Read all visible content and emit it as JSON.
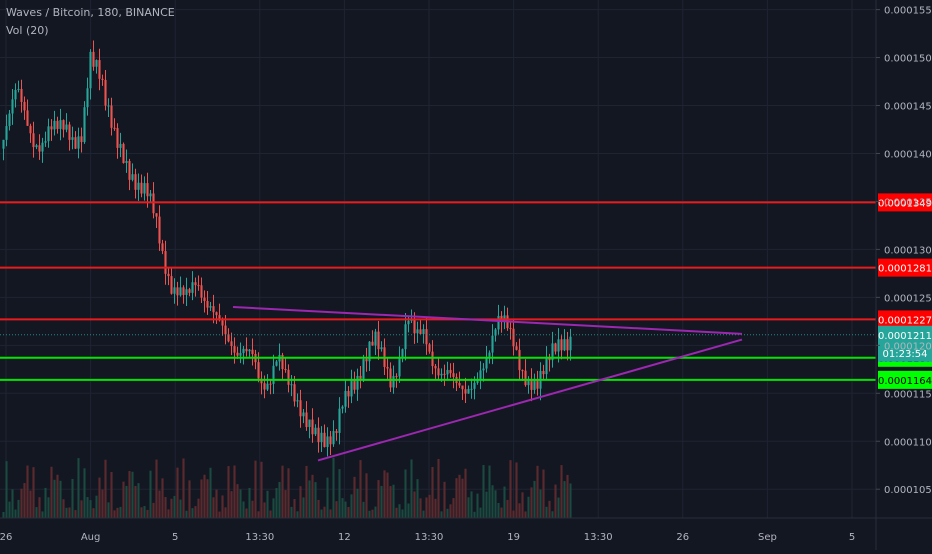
{
  "header": {
    "symbol_line": "Waves / Bitcoin, 180, BINANCE",
    "volume_line": "Vol (20)"
  },
  "chart_data": {
    "type": "candlestick",
    "ylim": [
      0.000102,
      0.000156
    ],
    "y_ticks": [
      "0.0001050",
      "0.0001100",
      "0.0001150",
      "0.0001200",
      "0.0001250",
      "0.0001300",
      "0.0001350",
      "0.0001400",
      "0.0001450",
      "0.0001500",
      "0.0001550"
    ],
    "x_ticks": [
      "26",
      "Aug",
      "5",
      "13:30",
      "12",
      "13:30",
      "19",
      "13:30",
      "26",
      "Sep",
      "5"
    ],
    "levels": [
      {
        "value": 0.0001349,
        "label": "0.0001349",
        "color": "#e81c1c",
        "badge_bg": "#ff0000",
        "badge_fg": "#ffffff"
      },
      {
        "value": 0.0001281,
        "label": "0.0001281",
        "color": "#e81c1c",
        "badge_bg": "#ff0000",
        "badge_fg": "#ffffff"
      },
      {
        "value": 0.0001227,
        "label": "0.0001227",
        "color": "#e81c1c",
        "badge_bg": "#ff0000",
        "badge_fg": "#ffffff"
      },
      {
        "value": 0.0001187,
        "label": "0.0001187",
        "color": "#00e600",
        "badge_bg": "#00ff00",
        "badge_fg": "#000000"
      },
      {
        "value": 0.0001164,
        "label": "0.0001164",
        "color": "#00e600",
        "badge_bg": "#00ff00",
        "badge_fg": "#000000"
      }
    ],
    "last_price": {
      "value": 0.0001211,
      "label": "0.0001211",
      "countdown": "01:23:54",
      "badge_bg": "#26a69a",
      "badge_fg": "#ffffff"
    },
    "triangle": {
      "color": "#9c27b0",
      "upper": [
        [
          0,
          0.000124
        ],
        [
          1,
          0.0001212
        ]
      ],
      "lower": [
        [
          0,
          0.000108
        ],
        [
          1,
          0.0001206
        ]
      ]
    },
    "price_path": [
      0.0001405,
      0.000143,
      0.000146,
      0.000144,
      0.000142,
      0.0001415,
      0.0001425,
      0.0001418,
      0.000142,
      0.0001415,
      0.000143,
      0.0001505,
      0.000148,
      0.000144,
      0.000142,
      0.000141,
      0.0001385,
      0.000136,
      0.000135,
      0.000133,
      0.0001295,
      0.000127,
      0.000126,
      0.0001245,
      0.0001255,
      0.0001245,
      0.000125,
      0.0001235,
      0.00012,
      0.0001175,
      0.000119,
      0.00012,
      0.000117,
      0.000116,
      0.000118,
      0.000116,
      0.000115,
      0.000114,
      0.0001125,
      0.00011,
      0.0001085,
      0.00011,
      0.000115,
      0.000117,
      0.0001165,
      0.000118,
      0.00012,
      0.000119,
      0.000117,
      0.000119,
      0.0001225,
      0.00012,
      0.000121,
      0.000119,
      0.000118,
      0.0001175,
      0.000115,
      0.000114,
      0.000116,
      0.0001185,
      0.00012,
      0.000122,
      0.0001215,
      0.00012,
      0.000118,
      0.000117,
      0.000116,
      0.000117,
      0.000119,
      0.0001205,
      0.0001215
    ]
  },
  "colors": {
    "background": "#131722",
    "grid": "#1f2433",
    "up": "#26a69a",
    "down": "#ef5350",
    "axis_text": "#b2b5be"
  }
}
